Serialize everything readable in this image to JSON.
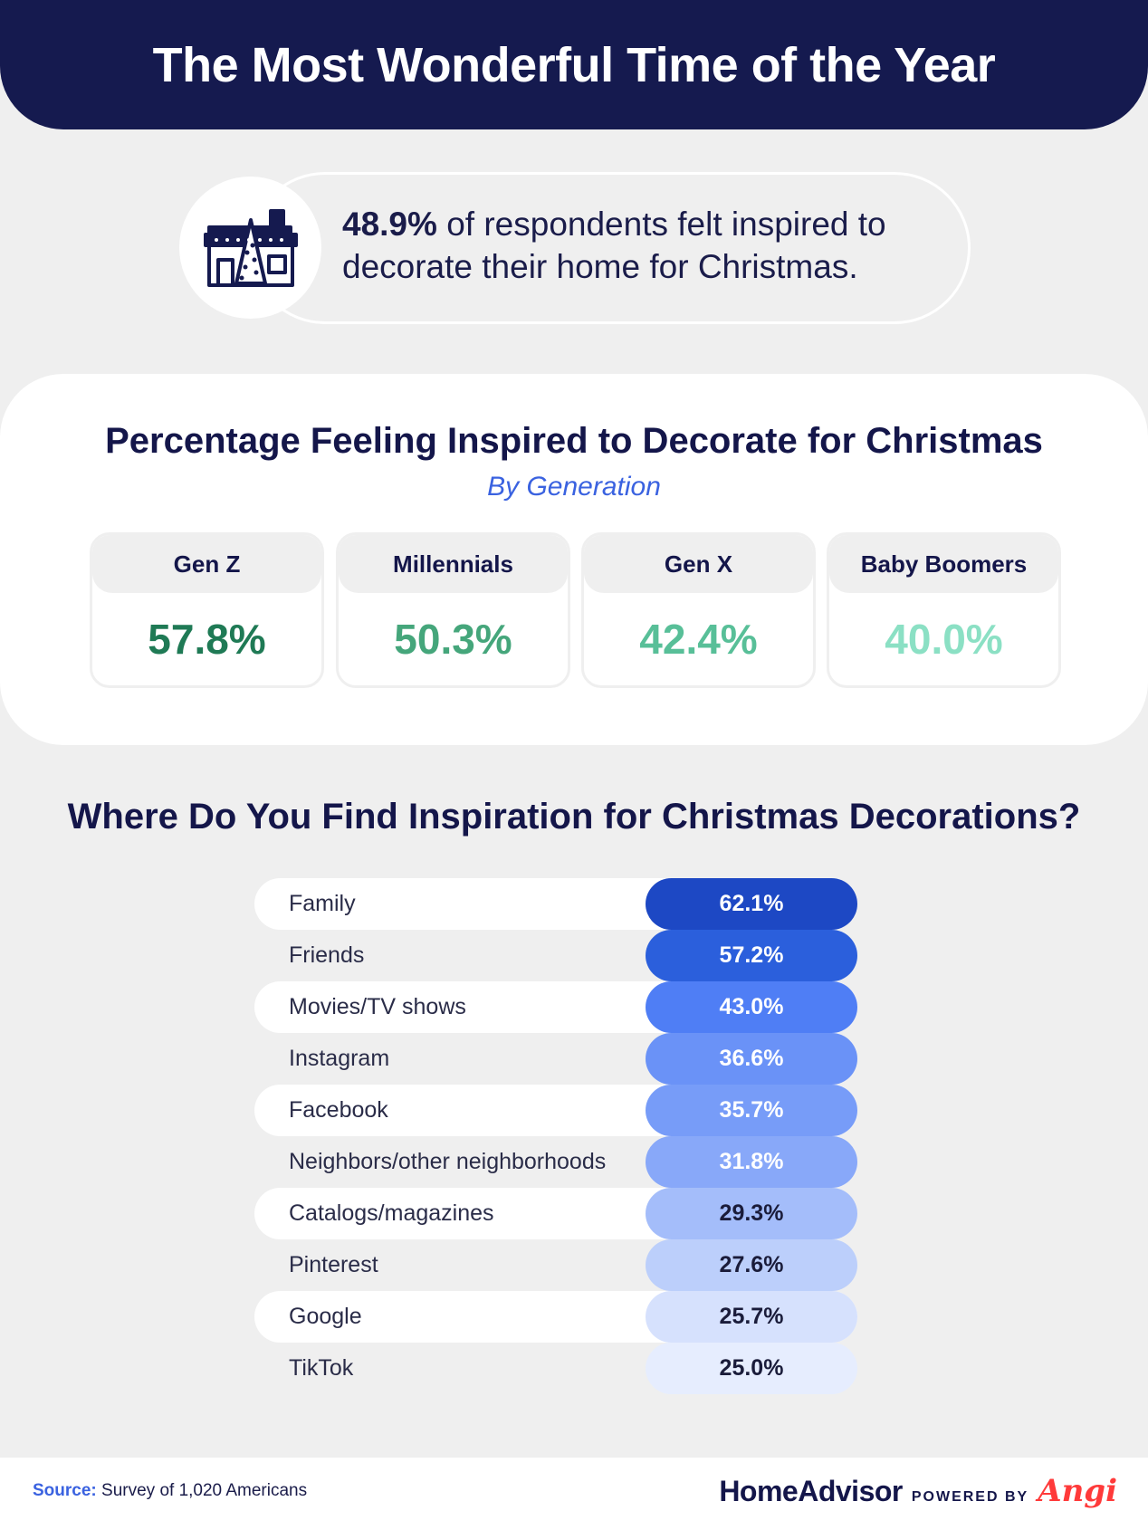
{
  "header": {
    "title": "The Most Wonderful Time of the Year"
  },
  "stat": {
    "icon": "house-with-christmas-tree-icon",
    "value": "48.9%",
    "text": " of respondents felt inspired to decorate their home for Christmas."
  },
  "generation": {
    "title": "Percentage Feeling Inspired to Decorate for Christmas",
    "subtitle": "By Generation",
    "cards": [
      {
        "label": "Gen Z",
        "value": "57.8%",
        "color": "#1f7a55"
      },
      {
        "label": "Millennials",
        "value": "50.3%",
        "color": "#45a67b"
      },
      {
        "label": "Gen X",
        "value": "42.4%",
        "color": "#58bf98"
      },
      {
        "label": "Baby Boomers",
        "value": "40.0%",
        "color": "#8be0c4"
      }
    ]
  },
  "inspiration": {
    "title": "Where Do You Find Inspiration for Christmas Decorations?"
  },
  "chart_data": [
    {
      "type": "table",
      "title": "Percentage Feeling Inspired to Decorate for Christmas",
      "subtitle": "By Generation",
      "categories": [
        "Gen Z",
        "Millennials",
        "Gen X",
        "Baby Boomers"
      ],
      "values": [
        57.8,
        50.3,
        42.4,
        40.0
      ]
    },
    {
      "type": "table",
      "title": "Where Do You Find Inspiration for Christmas Decorations?",
      "categories": [
        "Family",
        "Friends",
        "Movies/TV shows",
        "Instagram",
        "Facebook",
        "Neighbors/other neighborhoods",
        "Catalogs/magazines",
        "Pinterest",
        "Google",
        "TikTok"
      ],
      "values": [
        62.1,
        57.2,
        43.0,
        36.6,
        35.7,
        31.8,
        29.3,
        27.6,
        25.7,
        25.0
      ],
      "value_labels": [
        "62.1%",
        "57.2%",
        "43.0%",
        "36.6%",
        "35.7%",
        "31.8%",
        "29.3%",
        "27.6%",
        "25.7%",
        "25.0%"
      ],
      "pill_colors": [
        "#1d48c4",
        "#2b5fdc",
        "#4f7ef5",
        "#6a92f7",
        "#779cf8",
        "#88a8f9",
        "#a4bdfa",
        "#bccffb",
        "#d6e1fd",
        "#e6edfe"
      ],
      "label_colors": [
        "#ffffff",
        "#ffffff",
        "#ffffff",
        "#ffffff",
        "#ffffff",
        "#ffffff",
        "#1a1c3a",
        "#1a1c3a",
        "#1a1c3a",
        "#1a1c3a"
      ]
    }
  ],
  "footer": {
    "source_label": "Source:",
    "source_text": " Survey of 1,020 Americans",
    "brand": "HomeAdvisor",
    "powered_by": "POWERED BY",
    "angi": "Angi"
  }
}
